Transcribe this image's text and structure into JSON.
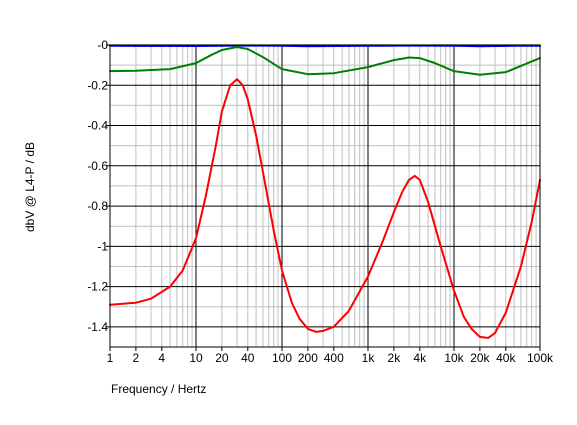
{
  "chart_data": {
    "type": "line",
    "xlabel": "Frequency / Hertz",
    "ylabel": "dbV @ L4-P / dB",
    "x_scale": "log",
    "xlim": [
      1,
      100000
    ],
    "ylim": [
      -1.5,
      0
    ],
    "grid": true,
    "x_tick_labels": [
      {
        "value": 1,
        "label": "1"
      },
      {
        "value": 2,
        "label": "2"
      },
      {
        "value": 4,
        "label": "4"
      },
      {
        "value": 10,
        "label": "10"
      },
      {
        "value": 20,
        "label": "20"
      },
      {
        "value": 40,
        "label": "40"
      },
      {
        "value": 100,
        "label": "100"
      },
      {
        "value": 200,
        "label": "200"
      },
      {
        "value": 400,
        "label": "400"
      },
      {
        "value": 1000,
        "label": "1k"
      },
      {
        "value": 2000,
        "label": "2k"
      },
      {
        "value": 4000,
        "label": "4k"
      },
      {
        "value": 10000,
        "label": "10k"
      },
      {
        "value": 20000,
        "label": "20k"
      },
      {
        "value": 40000,
        "label": "40k"
      },
      {
        "value": 100000,
        "label": "100k"
      }
    ],
    "y_tick_labels": [
      {
        "value": 0,
        "label": "-0"
      },
      {
        "value": -0.2,
        "label": "-0.2"
      },
      {
        "value": -0.4,
        "label": "-0.4"
      },
      {
        "value": -0.6,
        "label": "-0.6"
      },
      {
        "value": -0.8,
        "label": "-0.8"
      },
      {
        "value": -1,
        "label": "-1"
      },
      {
        "value": -1.2,
        "label": "-1.2"
      },
      {
        "value": -1.4,
        "label": "-1.4"
      }
    ],
    "series": [
      {
        "color": "#808000",
        "x": [
          1,
          100000
        ],
        "y": [
          -0.002,
          -0.002
        ]
      },
      {
        "color": "#0000ff",
        "x": [
          1,
          10,
          30,
          100,
          200,
          1000,
          3000,
          10000,
          20000,
          50000,
          100000
        ],
        "y": [
          -0.004,
          -0.005,
          -0.003,
          -0.004,
          -0.006,
          -0.004,
          -0.003,
          -0.004,
          -0.006,
          -0.004,
          -0.004
        ]
      },
      {
        "color": "#008000",
        "x": [
          1,
          2,
          5,
          10,
          15,
          20,
          30,
          40,
          60,
          100,
          200,
          400,
          1000,
          2000,
          3000,
          4000,
          6000,
          10000,
          20000,
          40000,
          100000
        ],
        "y": [
          -0.13,
          -0.128,
          -0.12,
          -0.09,
          -0.05,
          -0.025,
          -0.01,
          -0.02,
          -0.06,
          -0.12,
          -0.145,
          -0.14,
          -0.11,
          -0.075,
          -0.062,
          -0.065,
          -0.09,
          -0.13,
          -0.148,
          -0.135,
          -0.065
        ]
      },
      {
        "color": "#ff0000",
        "x": [
          1,
          2,
          3,
          5,
          7,
          10,
          13,
          17,
          20,
          25,
          30,
          35,
          40,
          50,
          60,
          80,
          100,
          130,
          160,
          200,
          250,
          300,
          400,
          600,
          1000,
          1500,
          2000,
          2500,
          3000,
          3500,
          4000,
          5000,
          7000,
          10000,
          13000,
          16000,
          20000,
          25000,
          30000,
          40000,
          60000,
          80000,
          100000
        ],
        "y": [
          -1.29,
          -1.28,
          -1.26,
          -1.2,
          -1.12,
          -0.96,
          -0.75,
          -0.5,
          -0.33,
          -0.2,
          -0.17,
          -0.2,
          -0.27,
          -0.45,
          -0.63,
          -0.92,
          -1.12,
          -1.28,
          -1.36,
          -1.41,
          -1.425,
          -1.42,
          -1.4,
          -1.32,
          -1.15,
          -0.97,
          -0.83,
          -0.73,
          -0.67,
          -0.65,
          -0.67,
          -0.78,
          -1.0,
          -1.22,
          -1.35,
          -1.41,
          -1.45,
          -1.455,
          -1.43,
          -1.33,
          -1.1,
          -0.88,
          -0.67
        ]
      }
    ]
  }
}
